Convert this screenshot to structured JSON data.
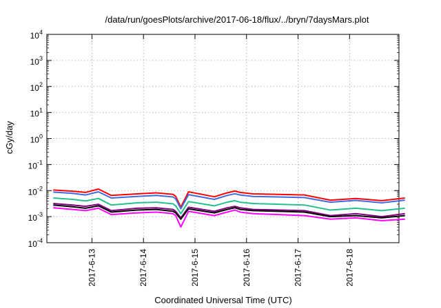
{
  "chart_data": {
    "type": "line",
    "title": "/data/run/goesPlots/archive/2017-06-18/flux/../bryn/7daysMars.plot",
    "xlabel": "Coordinated Universal Time (UTC)",
    "ylabel": "cGy/day",
    "y_scale": "log",
    "ylim": [
      0.0001,
      10000
    ],
    "y_ticks": [
      {
        "base": "10",
        "exp": "4",
        "value": 10000
      },
      {
        "base": "10",
        "exp": "3",
        "value": 1000
      },
      {
        "base": "10",
        "exp": "2",
        "value": 100
      },
      {
        "base": "10",
        "exp": "1",
        "value": 10
      },
      {
        "base": "10",
        "exp": "0",
        "value": 1
      },
      {
        "base": "10",
        "exp": "-1",
        "value": 0.1
      },
      {
        "base": "10",
        "exp": "-2",
        "value": 0.01
      },
      {
        "base": "10",
        "exp": "-3",
        "value": 0.001
      },
      {
        "base": "10",
        "exp": "-4",
        "value": 0.0001
      }
    ],
    "xlim": [
      "2017-06-12 03:00",
      "2017-06-18 23:00"
    ],
    "x_ticks": [
      "2017-6-13",
      "2017-6-14",
      "2017-6-15",
      "2017-6-16",
      "2017-6-17",
      "2017-6-18"
    ],
    "grid": true,
    "x_days": [
      0.125,
      0.5,
      0.75,
      1.0,
      1.25,
      1.75,
      2.125,
      2.45,
      2.5,
      2.6,
      2.75,
      3.25,
      3.5,
      3.65,
      3.75,
      4.0,
      4.5,
      5.0,
      5.5,
      6.0,
      6.5,
      6.95
    ],
    "series": [
      {
        "color": "#ff0000",
        "values": [
          0.0105,
          0.0095,
          0.0085,
          0.0115,
          0.0065,
          0.0075,
          0.0082,
          0.0072,
          0.006,
          0.0023,
          0.009,
          0.0058,
          0.0082,
          0.0096,
          0.0085,
          0.0075,
          0.0072,
          0.0068,
          0.0043,
          0.005,
          0.0041,
          0.0052
        ]
      },
      {
        "color": "#4169e1",
        "values": [
          0.0088,
          0.0078,
          0.0068,
          0.009,
          0.0052,
          0.006,
          0.0065,
          0.0057,
          0.0048,
          0.002,
          0.007,
          0.0046,
          0.0065,
          0.0076,
          0.0068,
          0.006,
          0.0057,
          0.0054,
          0.0036,
          0.0042,
          0.0034,
          0.0043
        ]
      },
      {
        "color": "#20c090",
        "values": [
          0.0052,
          0.0046,
          0.004,
          0.005,
          0.0028,
          0.0034,
          0.0036,
          0.0031,
          0.0026,
          0.0013,
          0.0038,
          0.0026,
          0.0036,
          0.0041,
          0.0036,
          0.0032,
          0.003,
          0.0028,
          0.0018,
          0.0021,
          0.0017,
          0.0021
        ]
      },
      {
        "color": "#800080",
        "values": [
          0.0032,
          0.0028,
          0.0025,
          0.003,
          0.0017,
          0.0021,
          0.0022,
          0.0019,
          0.0016,
          0.0009,
          0.0023,
          0.0016,
          0.0022,
          0.0025,
          0.0022,
          0.0019,
          0.0018,
          0.0017,
          0.0011,
          0.0013,
          0.001,
          0.0013
        ]
      },
      {
        "color": "#000000",
        "values": [
          0.0028,
          0.0024,
          0.0021,
          0.0026,
          0.0015,
          0.0018,
          0.0019,
          0.0016,
          0.0014,
          0.0008,
          0.002,
          0.0014,
          0.0019,
          0.0022,
          0.0019,
          0.0017,
          0.0016,
          0.0015,
          0.001,
          0.0011,
          0.0009,
          0.0011
        ]
      },
      {
        "color": "#ff00ff",
        "values": [
          0.0022,
          0.0019,
          0.0017,
          0.0021,
          0.0012,
          0.0014,
          0.0015,
          0.0013,
          0.0011,
          0.0004,
          0.0016,
          0.0011,
          0.0015,
          0.0018,
          0.0015,
          0.0013,
          0.0012,
          0.0011,
          0.0008,
          0.0009,
          0.0007,
          0.0008
        ]
      }
    ]
  }
}
